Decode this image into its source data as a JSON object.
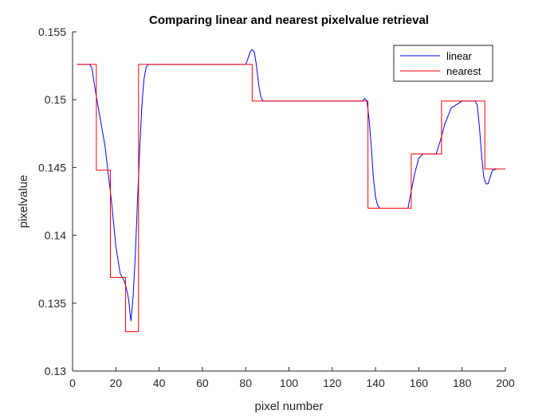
{
  "chart_data": {
    "type": "line",
    "title": "Comparing linear and nearest pixelvalue retrieval",
    "xlabel": "pixel number",
    "ylabel": "pixelvalue",
    "xlim": [
      0,
      200
    ],
    "ylim": [
      0.13,
      0.155
    ],
    "xticks": [
      0,
      20,
      40,
      60,
      80,
      100,
      120,
      140,
      160,
      180,
      200
    ],
    "xtick_labels": [
      "0",
      "20",
      "40",
      "60",
      "80",
      "100",
      "120",
      "140",
      "160",
      "180",
      "200"
    ],
    "yticks": [
      0.13,
      0.135,
      0.14,
      0.145,
      0.15,
      0.155
    ],
    "ytick_labels": [
      "0.13",
      "0.135",
      "0.14",
      "0.145",
      "0.15",
      "0.155"
    ],
    "grid": false,
    "legend_placement": "top-right",
    "series": [
      {
        "name": "linear",
        "color": "#0000ff",
        "x": [
          2,
          7,
          8,
          9,
          10,
          12,
          15,
          18,
          20,
          22,
          24,
          25,
          26,
          26.5,
          27,
          28,
          29,
          30,
          31,
          32,
          33,
          34,
          35,
          40,
          60,
          80,
          81,
          82,
          83,
          84,
          85,
          86,
          87,
          88,
          89,
          90,
          100,
          120,
          134,
          135,
          136,
          137,
          138,
          139,
          140,
          141,
          142,
          145,
          150,
          155,
          158,
          160,
          162,
          165,
          168,
          170,
          172,
          175,
          180,
          185,
          186,
          187,
          188,
          189,
          190,
          191,
          192,
          193,
          194,
          196
        ],
        "y": [
          0.1526,
          0.1526,
          0.1526,
          0.1523,
          0.1512,
          0.1493,
          0.1466,
          0.1425,
          0.1392,
          0.1372,
          0.1366,
          0.136,
          0.1352,
          0.1343,
          0.1337,
          0.1355,
          0.1385,
          0.1425,
          0.1462,
          0.1495,
          0.1515,
          0.1524,
          0.1526,
          0.1526,
          0.1526,
          0.1526,
          0.153,
          0.1535,
          0.1537,
          0.1535,
          0.1525,
          0.1511,
          0.1502,
          0.1499,
          0.1499,
          0.1499,
          0.1499,
          0.1499,
          0.1499,
          0.1501,
          0.1499,
          0.1486,
          0.1466,
          0.1443,
          0.1428,
          0.1422,
          0.142,
          0.142,
          0.142,
          0.142,
          0.1445,
          0.1457,
          0.146,
          0.146,
          0.146,
          0.147,
          0.1482,
          0.1494,
          0.1499,
          0.1499,
          0.1499,
          0.1496,
          0.148,
          0.1459,
          0.1443,
          0.1438,
          0.1438,
          0.1443,
          0.1448,
          0.1449
        ]
      },
      {
        "name": "nearest",
        "color": "#ff0000",
        "x": [
          2,
          11,
          11,
          17.5,
          17.5,
          24.5,
          24.5,
          30.5,
          30.5,
          83,
          83,
          136.5,
          136.5,
          156.5,
          156.5,
          170.5,
          170.5,
          190.5,
          190.5,
          200
        ],
        "y": [
          0.1526,
          0.1526,
          0.1448,
          0.1448,
          0.1369,
          0.1369,
          0.1329,
          0.1329,
          0.1526,
          0.1526,
          0.1499,
          0.1499,
          0.142,
          0.142,
          0.146,
          0.146,
          0.1499,
          0.1499,
          0.1449,
          0.1449
        ]
      }
    ]
  }
}
